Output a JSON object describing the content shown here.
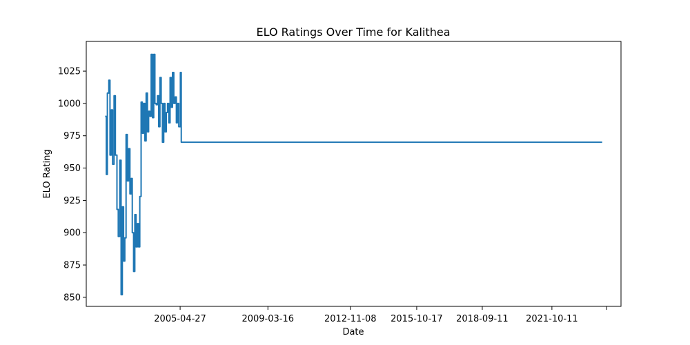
{
  "chart_data": {
    "type": "line",
    "title": "ELO Ratings Over Time for Kalithea",
    "xlabel": "Date",
    "ylabel": "ELO Rating",
    "x_ticks": [
      "2005-04-27",
      "2009-03-16",
      "2012-11-08",
      "2015-10-17",
      "2018-09-11",
      "2021-10-11",
      ""
    ],
    "y_ticks": [
      850,
      875,
      900,
      925,
      950,
      975,
      1000,
      1025
    ],
    "ylim": [
      843,
      1048
    ],
    "grid": false,
    "color": "#1f77b4",
    "series": [
      {
        "x": [
          "2002-01-01",
          "2002-01-20",
          "2002-02-05",
          "2002-03-01",
          "2002-03-20",
          "2002-04-10",
          "2002-05-01",
          "2002-05-25",
          "2002-06-15",
          "2002-07-10",
          "2002-08-01",
          "2002-08-25",
          "2002-09-15",
          "2002-10-05",
          "2002-10-25",
          "2002-11-15",
          "2002-12-05",
          "2002-12-25",
          "2003-01-15",
          "2003-02-05",
          "2003-02-25",
          "2003-03-15",
          "2003-04-05",
          "2003-04-25",
          "2003-05-15",
          "2003-06-05",
          "2003-06-25",
          "2003-07-15",
          "2003-08-05",
          "2003-08-25",
          "2003-09-15",
          "2003-10-05",
          "2003-10-25",
          "2003-11-15",
          "2003-12-05",
          "2003-12-25",
          "2004-01-15",
          "2004-02-05",
          "2004-02-25",
          "2004-03-15",
          "2004-04-05",
          "2004-04-25",
          "2004-05-15",
          "2004-06-05",
          "2004-06-25",
          "2004-07-15",
          "2004-08-05",
          "2004-08-25",
          "2004-09-15",
          "2004-10-05",
          "2004-10-25",
          "2004-11-15",
          "2004-12-05",
          "2004-12-25",
          "2005-01-15",
          "2005-02-05",
          "2005-02-25",
          "2005-03-15",
          "2005-04-05",
          "2005-05-01",
          "2005-05-15",
          "2024-01-01"
        ],
        "y": [
          990,
          945,
          1008,
          1018,
          960,
          995,
          953,
          1006,
          960,
          918,
          897,
          956,
          852,
          920,
          878,
          896,
          976,
          940,
          965,
          930,
          942,
          900,
          870,
          914,
          889,
          907,
          889,
          928,
          1001,
          977,
          1000,
          971,
          1008,
          978,
          994,
          990,
          1038,
          989,
          1038,
          1000,
          999,
          1006,
          982,
          1020,
          1000,
          970,
          1000,
          978,
          993,
          1000,
          985,
          1020,
          997,
          1024,
          1000,
          1005,
          985,
          1000,
          982,
          1024,
          970,
          970
        ]
      }
    ]
  }
}
